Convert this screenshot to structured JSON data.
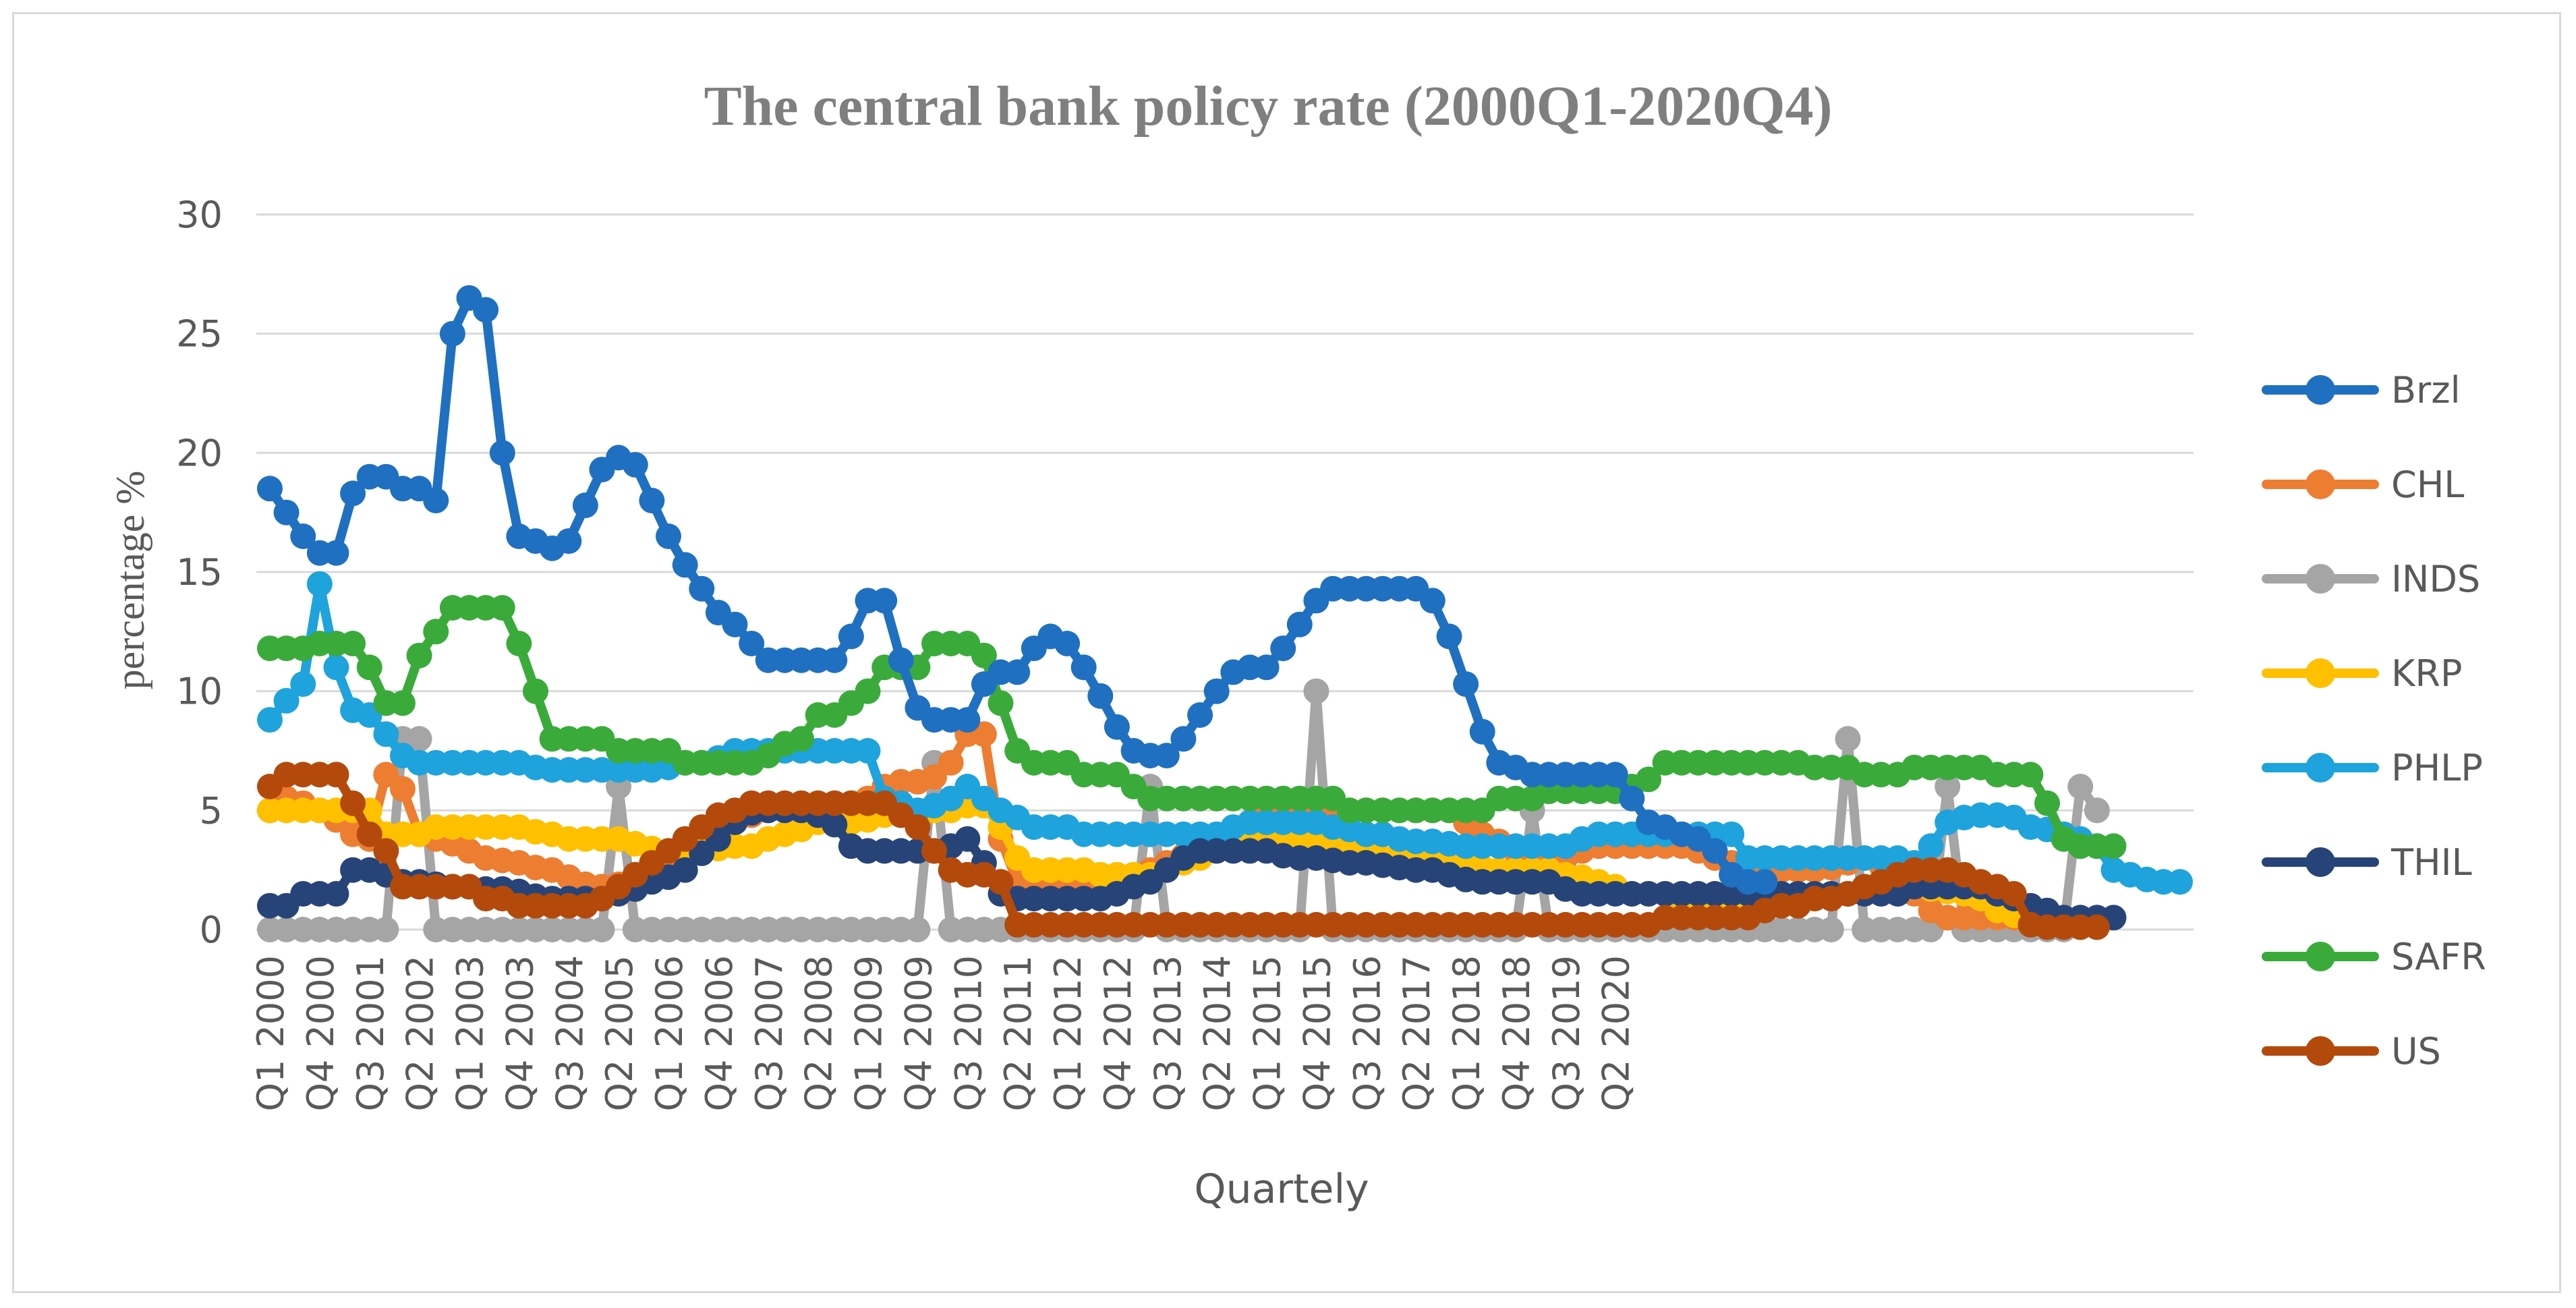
{
  "chart_data": {
    "type": "line",
    "title": "The central bank policy rate (2000Q1-2020Q4)",
    "xlabel": "Quartely",
    "ylabel": "percentage %",
    "ylim": [
      0,
      30
    ],
    "yticks": [
      0,
      5,
      10,
      15,
      20,
      25,
      30
    ],
    "grid": true,
    "legend": "right",
    "x_tick_labels": [
      "Q1 2000",
      "Q4 2000",
      "Q3 2001",
      "Q2 2002",
      "Q1 2003",
      "Q4 2003",
      "Q3 2004",
      "Q2 2005",
      "Q1 2006",
      "Q4 2006",
      "Q3 2007",
      "Q2 2008",
      "Q1 2009",
      "Q4 2009",
      "Q3 2010",
      "Q2 2011",
      "Q1 2012",
      "Q4 2012",
      "Q3 2013",
      "Q2 2014",
      "Q1 2015",
      "Q4 2015",
      "Q3 2016",
      "Q2 2017",
      "Q1 2018",
      "Q4 2018",
      "Q3 2019",
      "Q2 2020"
    ],
    "series": [
      {
        "name": "INDS",
        "color": "#a5a5a5",
        "values": [
          0,
          0,
          0,
          0,
          0,
          0,
          0,
          0,
          8,
          8,
          0,
          0,
          0,
          0,
          0,
          0,
          0,
          0,
          0,
          0,
          0,
          6,
          0,
          0,
          0,
          0,
          0,
          0,
          0,
          0,
          0,
          0,
          0,
          0,
          0,
          0,
          0,
          0,
          0,
          0,
          7,
          0,
          0,
          0,
          0,
          0,
          0,
          0,
          0,
          0,
          0,
          0,
          0,
          6,
          0,
          0,
          0,
          0,
          0,
          0,
          0,
          0,
          0,
          10,
          0,
          0,
          0,
          0,
          0,
          0,
          0,
          0,
          0,
          0,
          0,
          0,
          5,
          0,
          0,
          0,
          0,
          0,
          0,
          0,
          0,
          0,
          0,
          0,
          0,
          0,
          0,
          0,
          0,
          0,
          0,
          8,
          0,
          0,
          0,
          0,
          0,
          6,
          0,
          0,
          0,
          0,
          0,
          0,
          0,
          6,
          5
        ]
      },
      {
        "name": "CHL",
        "color": "#ed7d31",
        "values": [
          5,
          5.5,
          5.3,
          5,
          4.6,
          4,
          3.8,
          6.5,
          5.9,
          4,
          3.8,
          3.6,
          3.3,
          3,
          2.9,
          2.8,
          2.6,
          2.5,
          2.2,
          1.9,
          1.8,
          1.9,
          2.3,
          2.8,
          3.1,
          3.4,
          4,
          4.4,
          4.5,
          4.8,
          5,
          5.2,
          5.3,
          5.3,
          5.3,
          5.3,
          5.5,
          6,
          6.2,
          6.2,
          6.4,
          7,
          8.2,
          8.2,
          3.8,
          2,
          2,
          2,
          2,
          2,
          2,
          2,
          2,
          2.5,
          2.8,
          3.1,
          3.4,
          3.7,
          4,
          4.5,
          4.9,
          5,
          5,
          5,
          5,
          5,
          5,
          5,
          5,
          5,
          5,
          5,
          4.5,
          4,
          3.7,
          3.3,
          3,
          3,
          3,
          3.3,
          3.5,
          3.5,
          3.5,
          3.5,
          3.5,
          3.5,
          3.3,
          3,
          2.8,
          2.5,
          2.5,
          2.5,
          2.5,
          2.5,
          2.6,
          2.8,
          3,
          2.7,
          2.2,
          1.5,
          0.8,
          0.5,
          0.5,
          0.5,
          0.5,
          0.5,
          0.5,
          0.5,
          0.5
        ]
      },
      {
        "name": "KRP",
        "color": "#ffc000",
        "values": [
          5,
          5,
          5,
          5,
          5,
          5,
          5,
          4,
          4,
          4,
          4.3,
          4.3,
          4.3,
          4.3,
          4.3,
          4.3,
          4.1,
          4,
          3.8,
          3.8,
          3.8,
          3.8,
          3.6,
          3.4,
          3.3,
          3.3,
          3.3,
          3.4,
          3.5,
          3.5,
          3.8,
          4,
          4.2,
          4.5,
          4.5,
          4.5,
          4.6,
          4.8,
          5,
          5,
          5,
          5,
          5.2,
          5.2,
          4.3,
          3,
          2.5,
          2.5,
          2.5,
          2.5,
          2.3,
          2.3,
          2.3,
          2.3,
          2.5,
          2.8,
          3,
          3.3,
          3.5,
          3.6,
          3.8,
          3.8,
          3.8,
          3.8,
          3.8,
          3.5,
          3.3,
          3,
          3,
          3,
          2.8,
          2.8,
          2.8,
          2.6,
          2.5,
          2.5,
          2.5,
          2.5,
          2.3,
          2.2,
          2,
          1.8,
          1.5,
          1.5,
          1.5,
          1.3,
          1.3,
          1.3,
          1.3,
          1.3,
          1.3,
          1.4,
          1.5,
          1.5,
          1.5,
          1.5,
          1.7,
          1.8,
          1.8,
          1.8,
          1.7,
          1.6,
          1.5,
          1.3,
          0.8,
          0.6,
          0.5,
          0.5,
          0.5
        ]
      },
      {
        "name": "PHLP",
        "color": "#1ea3dc",
        "values": [
          8.8,
          9.6,
          10.3,
          14.5,
          11,
          9.2,
          9,
          8.2,
          7.3,
          7,
          7,
          7,
          7,
          7,
          7,
          7,
          6.8,
          6.7,
          6.7,
          6.7,
          6.7,
          6.7,
          6.7,
          6.7,
          6.8,
          7,
          7,
          7.2,
          7.5,
          7.5,
          7.5,
          7.5,
          7.5,
          7.5,
          7.5,
          7.5,
          7.5,
          5.5,
          5.3,
          5,
          5.2,
          5.5,
          6,
          5.5,
          5,
          4.7,
          4.3,
          4.3,
          4.3,
          4,
          4,
          4,
          4,
          4,
          4,
          4,
          4,
          4,
          4.3,
          4.5,
          4.5,
          4.5,
          4.5,
          4.5,
          4.3,
          4.2,
          4,
          4,
          3.8,
          3.7,
          3.7,
          3.6,
          3.5,
          3.5,
          3.5,
          3.5,
          3.5,
          3.5,
          3.5,
          3.8,
          4,
          4,
          4,
          4,
          4,
          4,
          4,
          4,
          4,
          3,
          3,
          3,
          3,
          3,
          3,
          3,
          3,
          3,
          3,
          2.8,
          3.5,
          4.5,
          4.7,
          4.8,
          4.8,
          4.7,
          4.3,
          4.2,
          4,
          3.8,
          3.5,
          2.5,
          2.3,
          2.1,
          2,
          2
        ]
      },
      {
        "name": "THIL",
        "color": "#264478",
        "values": [
          1,
          1,
          1.5,
          1.5,
          1.5,
          2.5,
          2.5,
          2.3,
          2,
          2,
          1.9,
          1.8,
          1.8,
          1.7,
          1.7,
          1.6,
          1.4,
          1.3,
          1.3,
          1.3,
          1.3,
          1.5,
          1.7,
          2,
          2.2,
          2.5,
          3.2,
          3.8,
          4.5,
          4.9,
          5,
          5,
          5,
          4.8,
          4.4,
          3.5,
          3.3,
          3.3,
          3.3,
          3.3,
          3.3,
          3.5,
          3.8,
          2.8,
          1.5,
          1.3,
          1.3,
          1.3,
          1.3,
          1.3,
          1.3,
          1.5,
          1.8,
          2,
          2.5,
          3,
          3.3,
          3.3,
          3.3,
          3.3,
          3.3,
          3.1,
          3,
          3,
          2.9,
          2.8,
          2.8,
          2.7,
          2.6,
          2.5,
          2.5,
          2.3,
          2.1,
          2,
          2,
          2,
          2,
          2,
          1.7,
          1.5,
          1.5,
          1.5,
          1.5,
          1.5,
          1.5,
          1.5,
          1.5,
          1.5,
          1.5,
          1.5,
          1.5,
          1.5,
          1.5,
          1.5,
          1.5,
          1.5,
          1.5,
          1.5,
          1.5,
          1.8,
          1.8,
          1.8,
          1.8,
          1.8,
          1.5,
          1.3,
          1,
          0.8,
          0.5,
          0.5,
          0.5,
          0.5
        ]
      },
      {
        "name": "SAFR",
        "color": "#3aab3a",
        "values": [
          11.8,
          11.8,
          11.8,
          12,
          12,
          12,
          11,
          9.5,
          9.5,
          11.5,
          12.5,
          13.5,
          13.5,
          13.5,
          13.5,
          12,
          10,
          8,
          8,
          8,
          8,
          7.5,
          7.5,
          7.5,
          7.5,
          7,
          7,
          7,
          7,
          7,
          7.3,
          7.8,
          8,
          9,
          9,
          9.5,
          10,
          11,
          11,
          11,
          12,
          12,
          12,
          11.5,
          9.5,
          7.5,
          7,
          7,
          7,
          6.5,
          6.5,
          6.5,
          6,
          5.5,
          5.5,
          5.5,
          5.5,
          5.5,
          5.5,
          5.5,
          5.5,
          5.5,
          5.5,
          5.5,
          5.5,
          5,
          5,
          5,
          5,
          5,
          5,
          5,
          5,
          5,
          5.5,
          5.5,
          5.5,
          5.8,
          5.8,
          5.8,
          5.8,
          5.8,
          6,
          6.3,
          7,
          7,
          7,
          7,
          7,
          7,
          7,
          7,
          7,
          6.8,
          6.8,
          6.8,
          6.5,
          6.5,
          6.5,
          6.8,
          6.8,
          6.8,
          6.8,
          6.8,
          6.5,
          6.5,
          6.5,
          5.3,
          3.8,
          3.5,
          3.5,
          3.5
        ]
      },
      {
        "name": "US",
        "color": "#b34a0b",
        "values": [
          6,
          6.5,
          6.5,
          6.5,
          6.5,
          5.3,
          4,
          3.3,
          1.8,
          1.8,
          1.8,
          1.8,
          1.8,
          1.3,
          1.3,
          1,
          1,
          1,
          1,
          1,
          1.3,
          1.8,
          2.3,
          2.8,
          3.3,
          3.8,
          4.3,
          4.8,
          5,
          5.3,
          5.3,
          5.3,
          5.3,
          5.3,
          5.3,
          5.3,
          5.3,
          5.3,
          4.8,
          4.3,
          3.3,
          2.5,
          2.3,
          2.3,
          2,
          0.2,
          0.2,
          0.2,
          0.2,
          0.2,
          0.2,
          0.2,
          0.2,
          0.2,
          0.2,
          0.2,
          0.2,
          0.2,
          0.2,
          0.2,
          0.2,
          0.2,
          0.2,
          0.2,
          0.2,
          0.2,
          0.2,
          0.2,
          0.2,
          0.2,
          0.2,
          0.2,
          0.2,
          0.2,
          0.2,
          0.2,
          0.2,
          0.2,
          0.2,
          0.2,
          0.2,
          0.2,
          0.2,
          0.2,
          0.5,
          0.5,
          0.5,
          0.5,
          0.5,
          0.5,
          0.8,
          1,
          1,
          1.3,
          1.3,
          1.5,
          1.8,
          2,
          2.3,
          2.5,
          2.5,
          2.5,
          2.3,
          2,
          1.8,
          1.5,
          0.2,
          0.1,
          0.1,
          0.1,
          0.1
        ]
      },
      {
        "name": "Brzl",
        "color": "#1f70c1",
        "values": [
          18.5,
          17.5,
          16.5,
          15.8,
          15.8,
          18.3,
          19,
          19,
          18.5,
          18.5,
          18,
          25,
          26.5,
          26,
          20,
          16.5,
          16.3,
          16,
          16.3,
          17.8,
          19.3,
          19.8,
          19.5,
          18,
          16.5,
          15.3,
          14.3,
          13.3,
          12.8,
          12,
          11.3,
          11.3,
          11.3,
          11.3,
          11.3,
          12.3,
          13.8,
          13.8,
          11.3,
          9.3,
          8.8,
          8.8,
          8.8,
          10.3,
          10.8,
          10.8,
          11.8,
          12.3,
          12,
          11,
          9.8,
          8.5,
          7.5,
          7.3,
          7.3,
          8,
          9,
          10,
          10.8,
          11,
          11,
          11.8,
          12.8,
          13.8,
          14.3,
          14.3,
          14.3,
          14.3,
          14.3,
          14.3,
          13.8,
          12.3,
          10.3,
          8.3,
          7,
          6.8,
          6.5,
          6.5,
          6.5,
          6.5,
          6.5,
          6.5,
          5.5,
          4.5,
          4.3,
          4,
          3.8,
          3.3,
          2.3,
          2,
          2
        ]
      }
    ],
    "legend_entries": [
      "Brzl",
      "CHL",
      "INDS",
      "KRP",
      "PHLP",
      "THIL",
      "SAFR",
      "US"
    ]
  }
}
